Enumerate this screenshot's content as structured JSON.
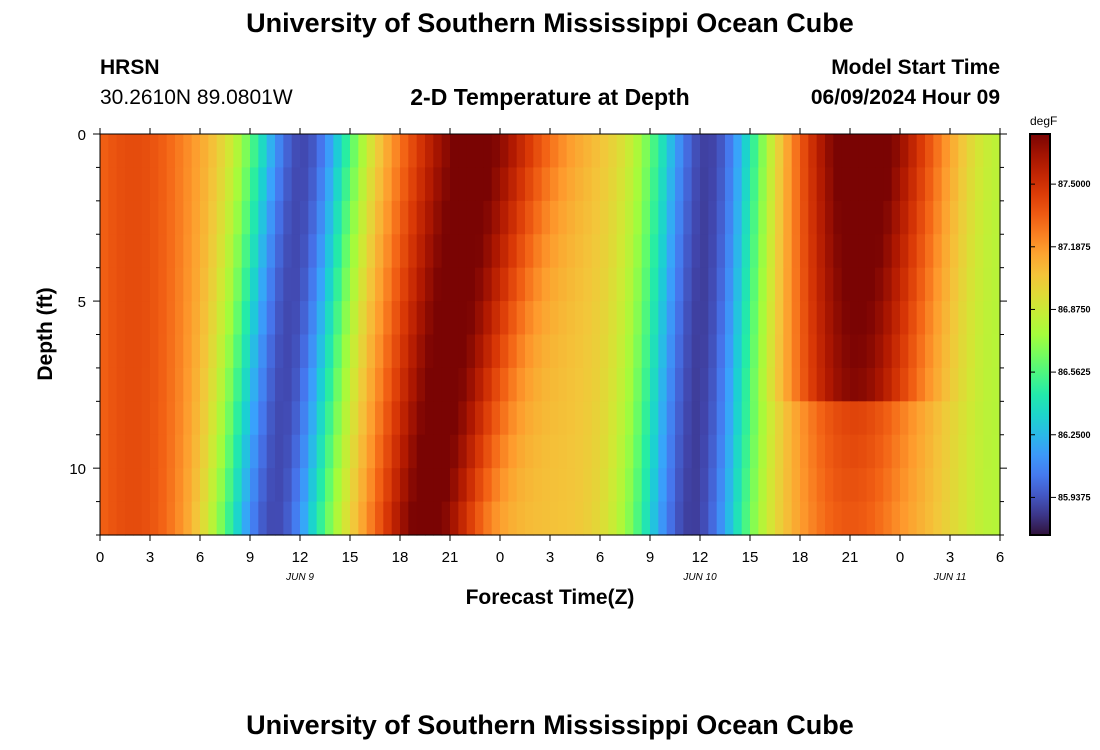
{
  "page": {
    "title_top": "University of Southern Mississippi Ocean Cube",
    "title_bottom": "University of Southern Mississippi Ocean Cube",
    "station_code": "HRSN",
    "station_coords": "30.2610N  89.0801W",
    "plot_title": "2-D Temperature at Depth",
    "model_start_label": "Model Start Time",
    "model_start_value": "06/09/2024 Hour 09"
  },
  "colors": {
    "palette": [
      "#30123b",
      "#4145ab",
      "#4675ed",
      "#39a2fc",
      "#1bcfd4",
      "#24eca6",
      "#61fc6c",
      "#a4fc3b",
      "#d1e834",
      "#f3c63a",
      "#fe9b2d",
      "#f36315",
      "#d93806",
      "#b11901",
      "#7a0403"
    ]
  },
  "chart_data": {
    "type": "heatmap",
    "xlabel": "Forecast Time(Z)",
    "ylabel": "Depth (ft)",
    "x_tick_labels": [
      "0",
      "3",
      "6",
      "9",
      "12",
      "15",
      "18",
      "21",
      "0",
      "3",
      "6",
      "9",
      "12",
      "15",
      "18",
      "21",
      "0",
      "3",
      "6"
    ],
    "date_labels": [
      {
        "text": "JUN 9",
        "hour": 12
      },
      {
        "text": "JUN 10",
        "hour": 36
      },
      {
        "text": "JUN 11",
        "hour": 51
      }
    ],
    "x_range_hours": [
      0,
      54
    ],
    "y_range_ft": [
      0,
      12
    ],
    "y_ticks": [
      0,
      5,
      10
    ],
    "y_tick_labels": [
      "0",
      "5",
      "10"
    ],
    "colorbar": {
      "unit": "degF",
      "range": [
        85.75,
        87.75
      ],
      "ticks": [
        85.9375,
        86.25,
        86.5625,
        86.875,
        87.1875,
        87.5
      ],
      "tick_labels": [
        "85.9375",
        "86.2500",
        "86.5625",
        "86.8750",
        "87.1875",
        "87.5000"
      ]
    },
    "field_description": "Temperature (degF) vs forecast hour and depth; surface warm bands near hours 20-26 and 42-46, cold minima near hours 12 and 36 extending to the bottom"
  }
}
